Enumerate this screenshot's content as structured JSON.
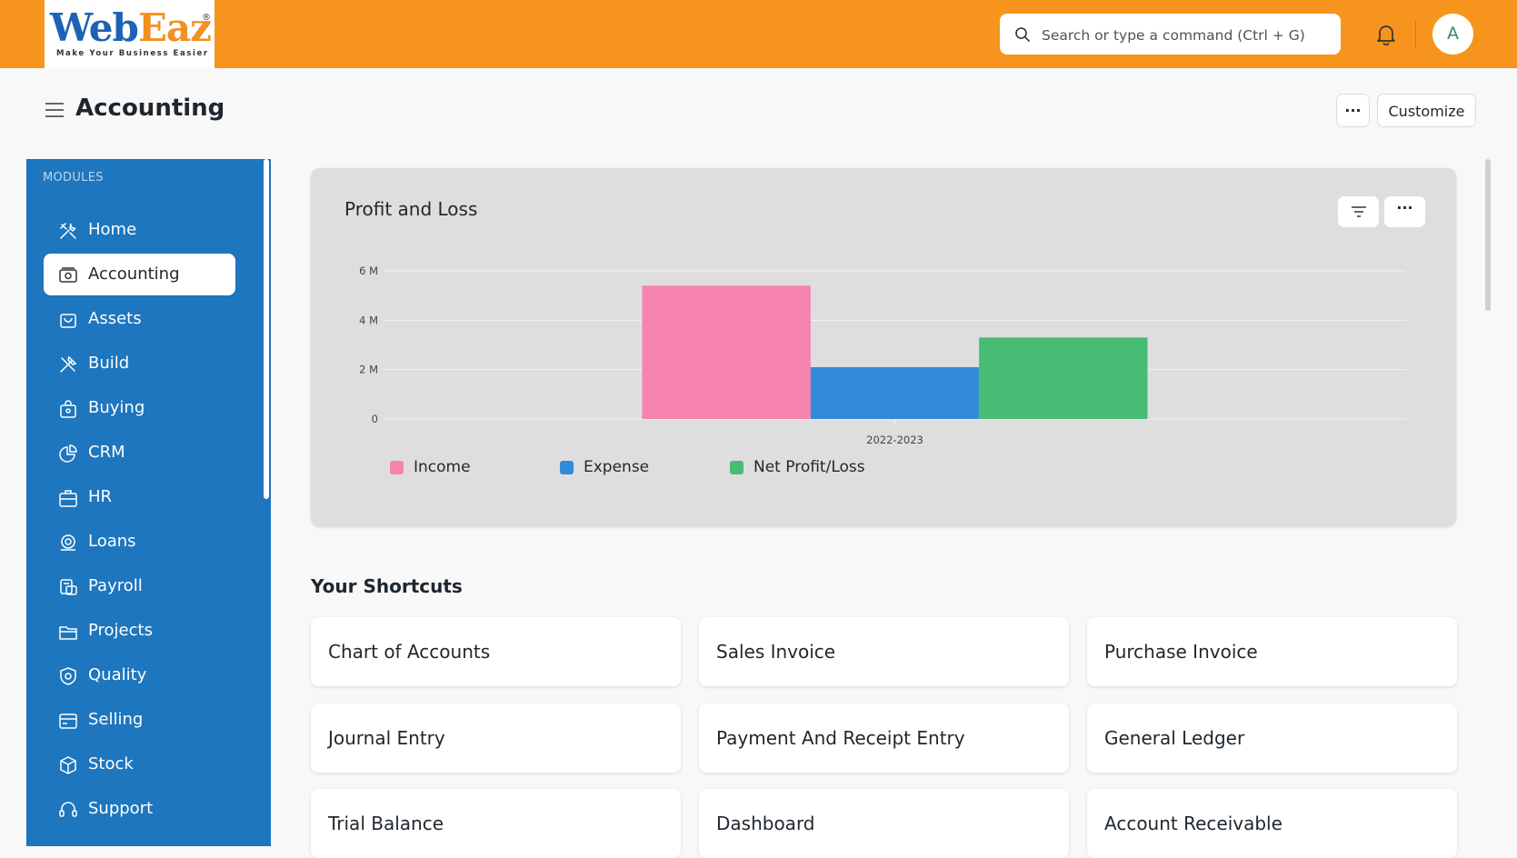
{
  "brand": {
    "logo_part1": "Web",
    "logo_part2": "Eaz",
    "registered": "®",
    "tagline": "Make Your Business Easier"
  },
  "navbar": {
    "search_placeholder": "Search or type a command (Ctrl + G)",
    "avatar_initial": "A"
  },
  "header": {
    "title": "Accounting",
    "more_label": "···",
    "customize_label": "Customize"
  },
  "sidebar": {
    "heading": "MODULES",
    "items": [
      {
        "label": "Home",
        "icon": "tools-icon"
      },
      {
        "label": "Accounting",
        "icon": "accounting-icon",
        "active": true
      },
      {
        "label": "Assets",
        "icon": "assets-icon"
      },
      {
        "label": "Build",
        "icon": "build-icon"
      },
      {
        "label": "Buying",
        "icon": "buying-icon"
      },
      {
        "label": "CRM",
        "icon": "crm-icon"
      },
      {
        "label": "HR",
        "icon": "hr-icon"
      },
      {
        "label": "Loans",
        "icon": "loans-icon"
      },
      {
        "label": "Payroll",
        "icon": "payroll-icon"
      },
      {
        "label": "Projects",
        "icon": "projects-icon"
      },
      {
        "label": "Quality",
        "icon": "quality-icon"
      },
      {
        "label": "Selling",
        "icon": "selling-icon"
      },
      {
        "label": "Stock",
        "icon": "stock-icon"
      },
      {
        "label": "Support",
        "icon": "support-icon"
      }
    ]
  },
  "chart_card": {
    "title": "Profit and Loss",
    "filter_label": "",
    "more_label": "···"
  },
  "chart_data": {
    "type": "bar",
    "categories": [
      "2022-2023"
    ],
    "series": [
      {
        "name": "Income",
        "values": [
          5.4
        ],
        "color": "#f683ae"
      },
      {
        "name": "Expense",
        "values": [
          2.1
        ],
        "color": "#318ad8"
      },
      {
        "name": "Net Profit/Loss",
        "values": [
          3.3
        ],
        "color": "#48bb74"
      }
    ],
    "yticks": [
      "0",
      "2 M",
      "4 M",
      "6 M"
    ],
    "ylim": [
      0,
      6
    ],
    "unit": "M",
    "grid": true,
    "legend_position": "bottom-left"
  },
  "shortcuts": {
    "title": "Your Shortcuts",
    "items": [
      "Chart of Accounts",
      "Sales Invoice",
      "Purchase Invoice",
      "Journal Entry",
      "Payment And Receipt Entry",
      "General Ledger",
      "Trial Balance",
      "Dashboard",
      "Account Receivable"
    ]
  },
  "colors": {
    "navbar": "#f7941e",
    "sidebar": "#1d76be",
    "page_bg": "#f8f8f8"
  }
}
